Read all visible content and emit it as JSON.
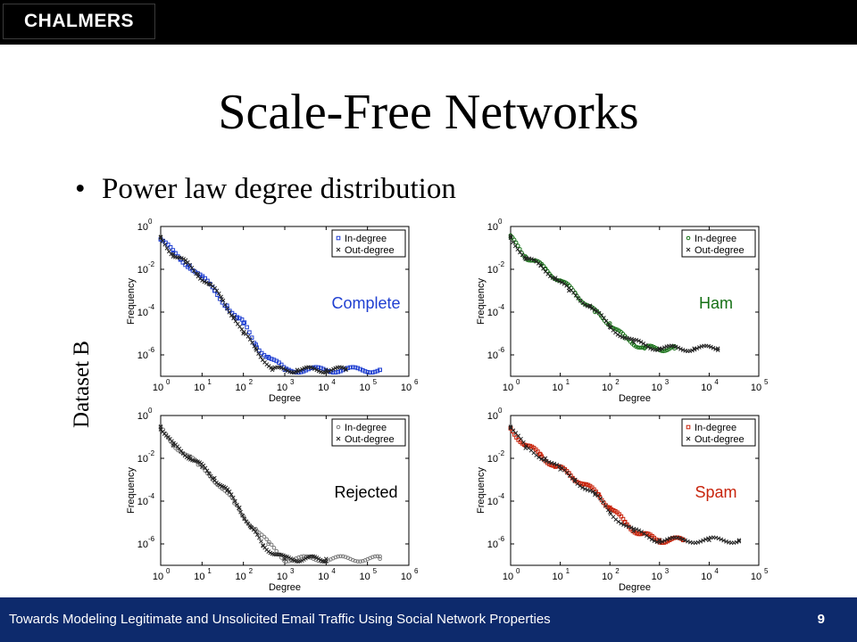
{
  "header": {
    "logo_text": "CHALMERS"
  },
  "slide": {
    "title": "Scale-Free Networks",
    "bullet": "Power law degree distribution",
    "dataset_label": "Dataset B"
  },
  "footer": {
    "text": "Towards Modeling Legitimate and Unsolicited Email Traffic Using Social Network Properties",
    "page": "9"
  },
  "colors": {
    "complete": "#1f3fd1",
    "ham": "#157015",
    "rejected": "#7a7a7a",
    "spam": "#c8240c",
    "footer_bg": "#0d2a6c"
  },
  "chart_data": [
    {
      "type": "scatter",
      "label": "Complete",
      "color": "#1f3fd1",
      "xlabel": "Degree",
      "ylabel": "Frequency",
      "x_scale": "log",
      "y_scale": "log",
      "xlim_exp": [
        0,
        6
      ],
      "ylim_exp": [
        -7,
        0
      ],
      "x_ticks": [
        "10^0",
        "10^1",
        "10^2",
        "10^3",
        "10^4",
        "10^5",
        "10^6"
      ],
      "y_ticks": [
        "10^0",
        "10^-2",
        "10^-4",
        "10^-6"
      ],
      "legend": [
        "In-degree",
        "Out-degree"
      ],
      "legend_position": "top-right",
      "series": [
        {
          "name": "In-degree",
          "marker": "square",
          "points": [
            [
              1,
              0.25
            ],
            [
              2,
              0.06
            ],
            [
              3,
              0.03
            ],
            [
              5,
              0.015
            ],
            [
              10,
              0.004
            ],
            [
              20,
              0.001
            ],
            [
              40,
              0.0002
            ],
            [
              70,
              5e-05
            ],
            [
              100,
              3e-05
            ],
            [
              200,
              3e-06
            ],
            [
              400,
              8e-07
            ],
            [
              1000,
              2e-07
            ],
            [
              200000,
              2e-07
            ]
          ]
        },
        {
          "name": "Out-degree",
          "marker": "x",
          "points": [
            [
              1,
              0.3
            ],
            [
              2,
              0.05
            ],
            [
              4,
              0.02
            ],
            [
              8,
              0.006
            ],
            [
              15,
              0.002
            ],
            [
              30,
              0.0004
            ],
            [
              60,
              6e-05
            ],
            [
              100,
              1e-05
            ],
            [
              200,
              2e-06
            ],
            [
              500,
              2e-07
            ],
            [
              2000,
              2e-07
            ],
            [
              10000,
              2e-07
            ],
            [
              30000,
              2e-07
            ]
          ]
        }
      ]
    },
    {
      "type": "scatter",
      "label": "Ham",
      "color": "#157015",
      "xlabel": "Degree",
      "ylabel": "Frequency",
      "x_scale": "log",
      "y_scale": "log",
      "xlim_exp": [
        0,
        5
      ],
      "ylim_exp": [
        -7,
        0
      ],
      "x_ticks": [
        "10^0",
        "10^1",
        "10^2",
        "10^3",
        "10^4",
        "10^5"
      ],
      "y_ticks": [
        "10^0",
        "10^-2",
        "10^-4",
        "10^-6"
      ],
      "legend": [
        "In-degree",
        "Out-degree"
      ],
      "legend_position": "top-right",
      "series": [
        {
          "name": "In-degree",
          "marker": "circle",
          "points": [
            [
              1,
              0.3
            ],
            [
              2,
              0.04
            ],
            [
              3,
              0.025
            ],
            [
              5,
              0.01
            ],
            [
              10,
              0.003
            ],
            [
              20,
              0.0008
            ],
            [
              50,
              0.0001
            ],
            [
              100,
              3e-05
            ],
            [
              200,
              6e-06
            ],
            [
              500,
              2e-06
            ],
            [
              2000,
              2e-06
            ]
          ]
        },
        {
          "name": "Out-degree",
          "marker": "x",
          "points": [
            [
              1,
              0.35
            ],
            [
              2,
              0.03
            ],
            [
              4,
              0.015
            ],
            [
              8,
              0.004
            ],
            [
              15,
              0.001
            ],
            [
              40,
              0.0002
            ],
            [
              100,
              2e-05
            ],
            [
              300,
              4e-06
            ],
            [
              1000,
              2e-06
            ],
            [
              5000,
              2e-06
            ],
            [
              15000,
              2e-06
            ]
          ]
        }
      ]
    },
    {
      "type": "scatter",
      "label": "Rejected",
      "color": "#7a7a7a",
      "xlabel": "Degree",
      "ylabel": "Frequency",
      "x_scale": "log",
      "y_scale": "log",
      "xlim_exp": [
        0,
        6
      ],
      "ylim_exp": [
        -7,
        0
      ],
      "x_ticks": [
        "10^0",
        "10^1",
        "10^2",
        "10^3",
        "10^4",
        "10^5",
        "10^6"
      ],
      "y_ticks": [
        "10^0",
        "10^-2",
        "10^-4",
        "10^-6"
      ],
      "legend": [
        "In-degree",
        "Out-degree"
      ],
      "legend_position": "top-right",
      "series": [
        {
          "name": "In-degree",
          "marker": "circle",
          "points": [
            [
              1,
              0.25
            ],
            [
              2,
              0.05
            ],
            [
              4,
              0.015
            ],
            [
              8,
              0.005
            ],
            [
              15,
              0.002
            ],
            [
              30,
              0.0004
            ],
            [
              60,
              8e-05
            ],
            [
              100,
              2e-05
            ],
            [
              200,
              5e-06
            ],
            [
              400,
              1e-06
            ],
            [
              1000,
              2e-07
            ],
            [
              200000,
              2e-07
            ]
          ]
        },
        {
          "name": "Out-degree",
          "marker": "x",
          "points": [
            [
              1,
              0.3
            ],
            [
              2,
              0.04
            ],
            [
              5,
              0.012
            ],
            [
              10,
              0.004
            ],
            [
              20,
              0.0012
            ],
            [
              40,
              0.0003
            ],
            [
              80,
              5e-05
            ],
            [
              150,
              6e-06
            ],
            [
              300,
              8e-07
            ],
            [
              1000,
              2e-07
            ],
            [
              10000,
              2e-07
            ]
          ]
        }
      ]
    },
    {
      "type": "scatter",
      "label": "Spam",
      "color": "#c8240c",
      "xlabel": "Degree",
      "ylabel": "Frequency",
      "x_scale": "log",
      "y_scale": "log",
      "xlim_exp": [
        0,
        5
      ],
      "ylim_exp": [
        -7,
        0
      ],
      "x_ticks": [
        "10^0",
        "10^1",
        "10^2",
        "10^3",
        "10^4",
        "10^5"
      ],
      "y_ticks": [
        "10^0",
        "10^-2",
        "10^-4",
        "10^-6"
      ],
      "legend": [
        "In-degree",
        "Out-degree"
      ],
      "legend_position": "top-right",
      "series": [
        {
          "name": "In-degree",
          "marker": "square",
          "points": [
            [
              1,
              0.25
            ],
            [
              2,
              0.04
            ],
            [
              4,
              0.015
            ],
            [
              8,
              0.004
            ],
            [
              15,
              0.002
            ],
            [
              30,
              0.0006
            ],
            [
              60,
              0.0002
            ],
            [
              100,
              5e-05
            ],
            [
              200,
              1e-05
            ],
            [
              400,
              3e-06
            ],
            [
              1000,
              1.5e-06
            ],
            [
              3000,
              1.5e-06
            ]
          ]
        },
        {
          "name": "Out-degree",
          "marker": "x",
          "points": [
            [
              1,
              0.3
            ],
            [
              2,
              0.03
            ],
            [
              5,
              0.01
            ],
            [
              10,
              0.003
            ],
            [
              20,
              0.001
            ],
            [
              50,
              0.0002
            ],
            [
              100,
              3e-05
            ],
            [
              300,
              4e-06
            ],
            [
              1000,
              1.5e-06
            ],
            [
              10000,
              1.5e-06
            ],
            [
              40000,
              1.5e-06
            ]
          ]
        }
      ]
    }
  ]
}
